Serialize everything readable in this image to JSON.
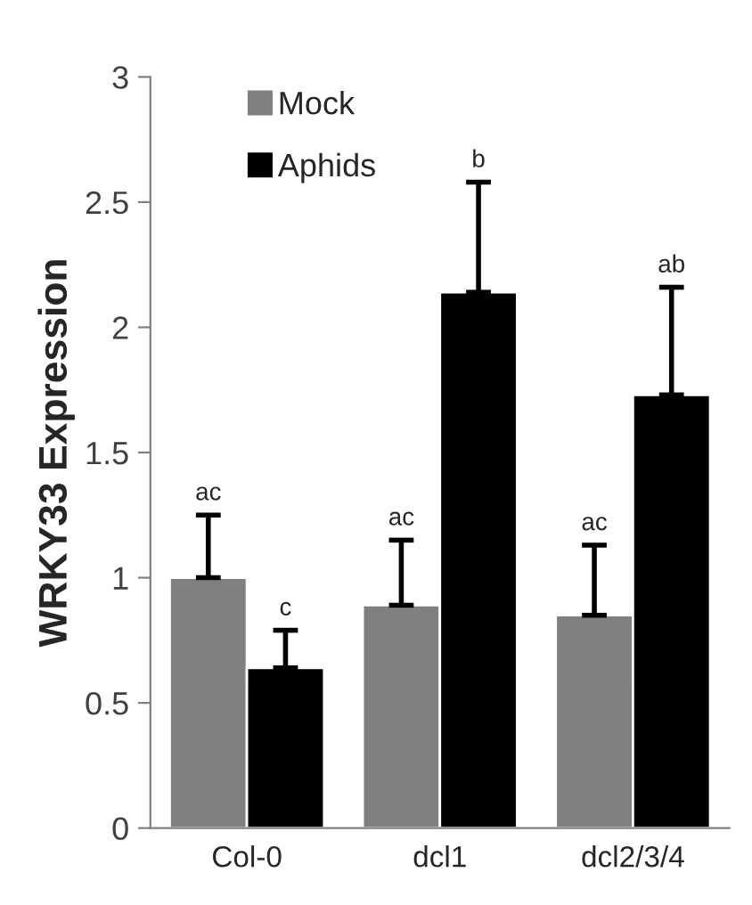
{
  "chart_data": {
    "type": "bar",
    "ylabel": "WRKY33 Expression",
    "categories": [
      "Col-0",
      "dcl1",
      "dcl2/3/4"
    ],
    "series": [
      {
        "name": "Mock",
        "color": "#808080",
        "values": [
          1.0,
          0.89,
          0.85
        ],
        "errors": [
          [
            1.0,
            1.25
          ],
          [
            0.89,
            1.15
          ],
          [
            0.85,
            1.13
          ]
        ]
      },
      {
        "name": "Aphids",
        "color": "#000000",
        "values": [
          0.64,
          2.14,
          1.73
        ],
        "errors": [
          [
            0.64,
            0.79
          ],
          [
            2.14,
            2.58
          ],
          [
            1.73,
            2.16
          ]
        ]
      }
    ],
    "annotations": [
      "ac",
      "ac",
      "ac",
      "c",
      "b",
      "ab"
    ],
    "ylim": [
      0,
      3
    ],
    "yticks": [
      0,
      0.5,
      1,
      1.5,
      2,
      2.5,
      3
    ],
    "legend": "top left",
    "grid": false
  }
}
